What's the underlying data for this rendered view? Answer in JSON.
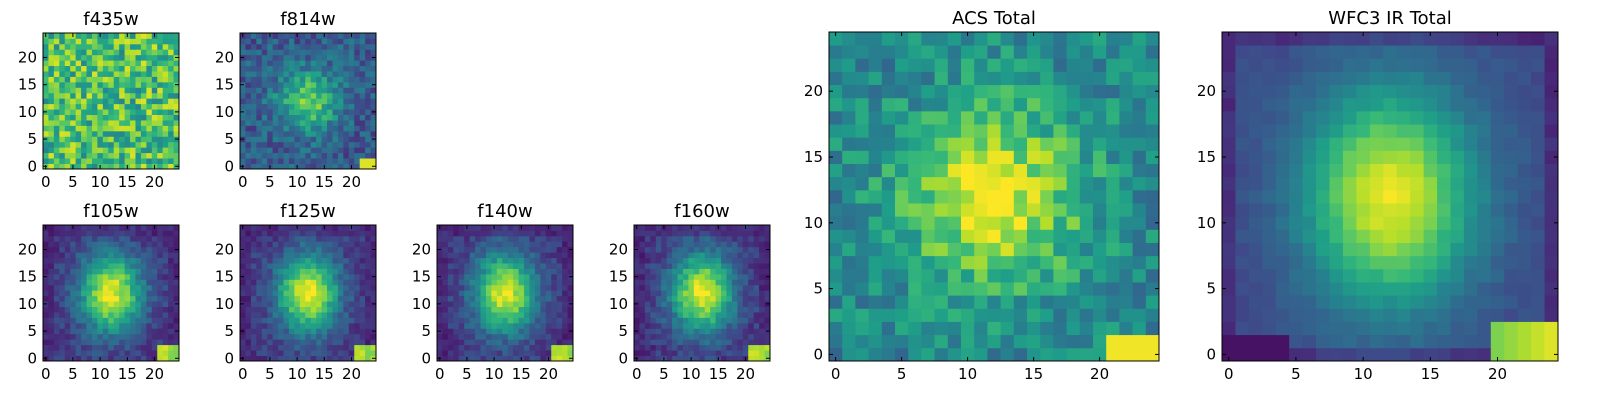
{
  "figure": {
    "type": "image-grid"
  },
  "chart_data": [
    {
      "type": "heatmap",
      "title": "f435w",
      "image": "noise",
      "xlim": [
        0,
        24
      ],
      "ylim": [
        0,
        24
      ],
      "xticks": [
        0,
        5,
        10,
        15,
        20
      ],
      "yticks": [
        0,
        5,
        10,
        15,
        20
      ],
      "tick_labels": [
        "0",
        "5",
        "10",
        "15",
        "20"
      ]
    },
    {
      "type": "heatmap",
      "title": "f814w",
      "image": "faint-blob",
      "xlim": [
        0,
        24
      ],
      "ylim": [
        0,
        24
      ],
      "xticks": [
        0,
        5,
        10,
        15,
        20
      ],
      "yticks": [
        0,
        5,
        10,
        15,
        20
      ],
      "tick_labels": [
        "0",
        "5",
        "10",
        "15",
        "20"
      ]
    },
    {
      "type": "heatmap",
      "title": "f105w",
      "image": "blob",
      "xlim": [
        0,
        24
      ],
      "ylim": [
        0,
        24
      ],
      "xticks": [
        0,
        5,
        10,
        15,
        20
      ],
      "yticks": [
        0,
        5,
        10,
        15,
        20
      ],
      "tick_labels": [
        "0",
        "5",
        "10",
        "15",
        "20"
      ]
    },
    {
      "type": "heatmap",
      "title": "f125w",
      "image": "blob",
      "xlim": [
        0,
        24
      ],
      "ylim": [
        0,
        24
      ],
      "xticks": [
        0,
        5,
        10,
        15,
        20
      ],
      "yticks": [
        0,
        5,
        10,
        15,
        20
      ],
      "tick_labels": [
        "0",
        "5",
        "10",
        "15",
        "20"
      ]
    },
    {
      "type": "heatmap",
      "title": "f140w",
      "image": "blob",
      "xlim": [
        0,
        24
      ],
      "ylim": [
        0,
        24
      ],
      "xticks": [
        0,
        5,
        10,
        15,
        20
      ],
      "yticks": [
        0,
        5,
        10,
        15,
        20
      ],
      "tick_labels": [
        "0",
        "5",
        "10",
        "15",
        "20"
      ]
    },
    {
      "type": "heatmap",
      "title": "f160w",
      "image": "blob",
      "xlim": [
        0,
        24
      ],
      "ylim": [
        0,
        24
      ],
      "xticks": [
        0,
        5,
        10,
        15,
        20
      ],
      "yticks": [
        0,
        5,
        10,
        15,
        20
      ],
      "tick_labels": [
        "0",
        "5",
        "10",
        "15",
        "20"
      ]
    },
    {
      "type": "heatmap",
      "title": "ACS Total",
      "image": "acs-total",
      "xlim": [
        0,
        24
      ],
      "ylim": [
        0,
        24
      ],
      "xticks": [
        0,
        5,
        10,
        15,
        20
      ],
      "yticks": [
        0,
        5,
        10,
        15,
        20
      ],
      "tick_labels": [
        "0",
        "5",
        "10",
        "15",
        "20"
      ]
    },
    {
      "type": "heatmap",
      "title": "WFC3 IR Total",
      "image": "ir-total",
      "xlim": [
        0,
        24
      ],
      "ylim": [
        0,
        24
      ],
      "xticks": [
        0,
        5,
        10,
        15,
        20
      ],
      "yticks": [
        0,
        5,
        10,
        15,
        20
      ],
      "tick_labels": [
        "0",
        "5",
        "10",
        "15",
        "20"
      ]
    }
  ],
  "colormap": {
    "name": "viridis",
    "stops": [
      "#440154",
      "#482878",
      "#3e4a89",
      "#31688e",
      "#26828e",
      "#1f9e89",
      "#35b779",
      "#6ece58",
      "#b5de2b",
      "#fde725"
    ]
  }
}
